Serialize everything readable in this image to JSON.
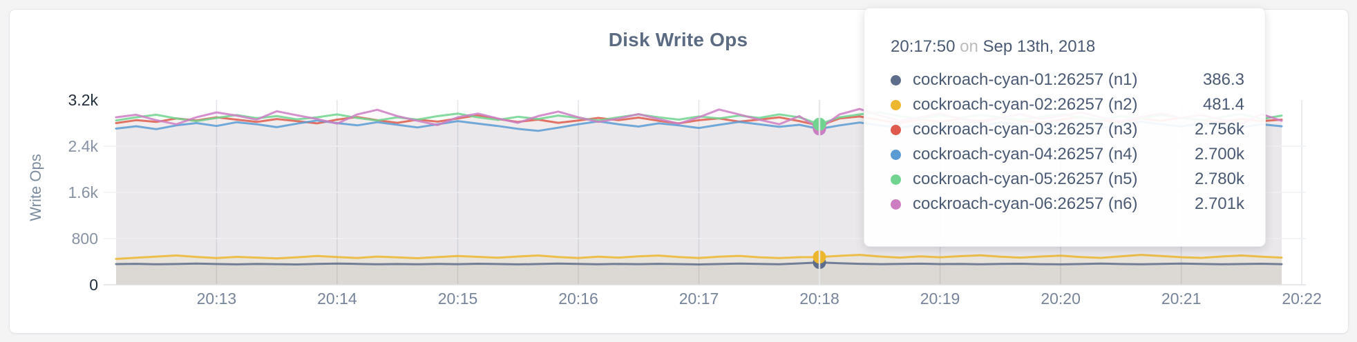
{
  "header": {
    "title": "Disk Write Ops"
  },
  "colors": {
    "accent_title": "#5b6b82",
    "axis_text": "#76849b",
    "axis_text_emphasis": "#232e3d",
    "grid_vertical": "#e2e4e8",
    "grid_horizontal": "#eff0f2",
    "axis_bottom_line": "#dde0e4",
    "hover_line": "#e6e8ea"
  },
  "y_axis": {
    "label": "Write Ops",
    "ticks": [
      {
        "label": "3.2k",
        "value": 3200,
        "emphasis": true
      },
      {
        "label": "2.4k",
        "value": 2400,
        "emphasis": false
      },
      {
        "label": "1.6k",
        "value": 1600,
        "emphasis": false
      },
      {
        "label": "800",
        "value": 800,
        "emphasis": false
      },
      {
        "label": "0",
        "value": 0,
        "emphasis": true
      }
    ]
  },
  "x_axis": {
    "tick_labels": [
      "20:13",
      "20:14",
      "20:15",
      "20:16",
      "20:17",
      "20:18",
      "20:19",
      "20:20",
      "20:21",
      "20:22"
    ]
  },
  "tooltip": {
    "time": "20:17:50",
    "separator": "on",
    "date": "Sep 13th, 2018",
    "rows": [
      {
        "name": "cockroach-cyan-01:26257 (n1)",
        "value": "386.3",
        "color": "#5d6d8a"
      },
      {
        "name": "cockroach-cyan-02:26257 (n2)",
        "value": "481.4",
        "color": "#ecb62f"
      },
      {
        "name": "cockroach-cyan-03:26257 (n3)",
        "value": "2.756k",
        "color": "#dd5a4c"
      },
      {
        "name": "cockroach-cyan-04:26257 (n4)",
        "value": "2.700k",
        "color": "#5b9bd3"
      },
      {
        "name": "cockroach-cyan-05:26257 (n5)",
        "value": "2.780k",
        "color": "#70d38f"
      },
      {
        "name": "cockroach-cyan-06:26257 (n6)",
        "value": "2.701k",
        "color": "#cd7ec3"
      }
    ]
  },
  "chart_data": {
    "type": "line",
    "title": "Disk Write Ops",
    "xlabel": "",
    "ylabel": "Write Ops",
    "ylim": [
      0,
      3200
    ],
    "y_gridline_values": [
      800,
      1600,
      2400
    ],
    "grid": true,
    "legend_position": "tooltip-overlay",
    "x_start": "20:12:10",
    "x_end": "20:21:50",
    "x_step_seconds": 10,
    "x_tick_labels": [
      "20:13",
      "20:14",
      "20:15",
      "20:16",
      "20:17",
      "20:18",
      "20:19",
      "20:20",
      "20:21",
      "20:22"
    ],
    "hover_index": 35,
    "hover_time": "20:17:50",
    "series": [
      {
        "name": "cockroach-cyan-01:26257 (n1)",
        "node": "n1",
        "color": "#5d6d8a",
        "values": [
          358,
          363,
          355,
          360,
          366,
          359,
          354,
          361,
          357,
          352,
          361,
          368,
          362,
          356,
          360,
          355,
          362,
          357,
          364,
          359,
          353,
          360,
          367,
          361,
          355,
          362,
          357,
          363,
          358,
          352,
          360,
          366,
          361,
          356,
          370,
          386.3,
          372,
          363,
          357,
          361,
          365,
          358,
          362,
          356,
          361,
          364,
          357,
          353,
          360,
          366,
          359,
          355,
          362,
          368,
          361,
          356,
          360,
          364,
          357
        ]
      },
      {
        "name": "cockroach-cyan-02:26257 (n2)",
        "node": "n2",
        "color": "#ecb62f",
        "values": [
          448,
          468,
          488,
          508,
          482,
          462,
          484,
          470,
          456,
          476,
          498,
          480,
          464,
          488,
          474,
          460,
          480,
          498,
          484,
          468,
          490,
          508,
          480,
          464,
          486,
          470,
          492,
          506,
          480,
          464,
          486,
          500,
          476,
          462,
          478,
          481.4,
          502,
          518,
          490,
          470,
          492,
          476,
          496,
          510,
          486,
          470,
          490,
          504,
          480,
          466,
          492,
          518,
          498,
          478,
          466,
          490,
          508,
          486,
          470
        ]
      },
      {
        "name": "cockroach-cyan-03:26257 (n3)",
        "node": "n3",
        "color": "#dd5a4c",
        "values": [
          2800,
          2850,
          2820,
          2880,
          2845,
          2900,
          2860,
          2820,
          2870,
          2835,
          2795,
          2860,
          2905,
          2850,
          2805,
          2860,
          2825,
          2880,
          2935,
          2870,
          2820,
          2860,
          2805,
          2845,
          2890,
          2850,
          2895,
          2840,
          2795,
          2850,
          2880,
          2825,
          2860,
          2900,
          2835,
          2756,
          2880,
          2915,
          2850,
          2805,
          2860,
          2825,
          2870,
          2835,
          2890,
          2845,
          2805,
          2860,
          2905,
          2850,
          2820,
          2880,
          2840,
          2895,
          2850,
          2815,
          2870,
          2835,
          2860
        ]
      },
      {
        "name": "cockroach-cyan-04:26257 (n4)",
        "node": "n4",
        "color": "#5b9bd3",
        "values": [
          2705,
          2745,
          2695,
          2760,
          2800,
          2750,
          2815,
          2780,
          2730,
          2790,
          2845,
          2800,
          2760,
          2815,
          2770,
          2725,
          2780,
          2835,
          2790,
          2750,
          2700,
          2665,
          2720,
          2780,
          2830,
          2780,
          2740,
          2795,
          2760,
          2715,
          2770,
          2820,
          2780,
          2735,
          2770,
          2700,
          2760,
          2810,
          2760,
          2720,
          2775,
          2740,
          2705,
          2760,
          2810,
          2770,
          2730,
          2790,
          2750,
          2715,
          2770,
          2825,
          2780,
          2740,
          2795,
          2760,
          2725,
          2780,
          2745
        ]
      },
      {
        "name": "cockroach-cyan-05:26257 (n5)",
        "node": "n5",
        "color": "#70d38f",
        "values": [
          2845,
          2900,
          2945,
          2880,
          2835,
          2890,
          2940,
          2885,
          2920,
          2865,
          2900,
          2950,
          2890,
          2845,
          2900,
          2860,
          2920,
          2965,
          2900,
          2855,
          2910,
          2870,
          2930,
          2890,
          2845,
          2900,
          2950,
          2900,
          2860,
          2915,
          2880,
          2930,
          2890,
          2950,
          2900,
          2780,
          2900,
          2950,
          2985,
          2920,
          2870,
          2930,
          2890,
          2940,
          2900,
          2855,
          2910,
          2955,
          2900,
          2860,
          2920,
          2880,
          2940,
          2890,
          2850,
          2905,
          2955,
          2870,
          2930
        ]
      },
      {
        "name": "cockroach-cyan-06:26257 (n6)",
        "node": "n6",
        "color": "#cd7ec3",
        "values": [
          2900,
          2945,
          2850,
          2780,
          2900,
          2985,
          2930,
          2860,
          3005,
          2935,
          2870,
          2790,
          2950,
          3030,
          2920,
          2840,
          2765,
          2900,
          2965,
          2880,
          2805,
          2920,
          3000,
          2900,
          2820,
          2880,
          2955,
          2870,
          2790,
          2900,
          3035,
          2950,
          2860,
          2780,
          2920,
          2701,
          2950,
          3045,
          2930,
          2840,
          2900,
          2965,
          2880,
          2805,
          2890,
          2955,
          2870,
          2920,
          2985,
          2900,
          2830,
          2910,
          2965,
          2890,
          2940,
          2860,
          2785,
          2955,
          2840
        ]
      }
    ]
  }
}
